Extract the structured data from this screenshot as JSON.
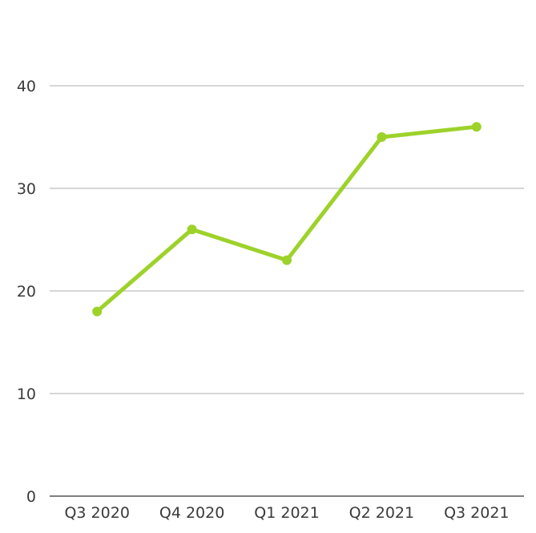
{
  "chart_data": {
    "type": "line",
    "title": "",
    "xlabel": "",
    "ylabel": "",
    "categories": [
      "Q3 2020",
      "Q4 2020",
      "Q1 2021",
      "Q2 2021",
      "Q3 2021"
    ],
    "series": [
      {
        "values": [
          18,
          26,
          23,
          35,
          36
        ],
        "color": "#9dd22a"
      }
    ],
    "ylim": [
      0,
      40
    ],
    "yticks": [
      0,
      10,
      20,
      30,
      40
    ],
    "grid": true,
    "legend": "none"
  }
}
